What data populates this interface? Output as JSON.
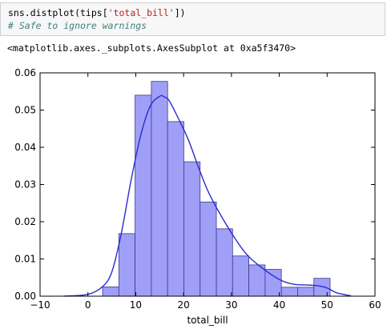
{
  "cell": {
    "code_prefix": "sns.distplot(tips[",
    "code_string": "'total_bill'",
    "code_suffix": "])",
    "comment": "# Safe to ignore warnings"
  },
  "output": {
    "repr": "<matplotlib.axes._subplots.AxesSubplot at 0xa5f3470>"
  },
  "colors": {
    "bar_fill": "#9a9af8",
    "bar_edge": "#3a3a8c",
    "kde_line": "#2b2bd0",
    "code_bg": "#f7f7f7",
    "comment": "#408080",
    "string": "#ba2121"
  },
  "chart_data": {
    "type": "bar",
    "title": "",
    "xlabel": "total_bill",
    "ylabel": "",
    "xlim": [
      -10,
      60
    ],
    "ylim": [
      0.0,
      0.06
    ],
    "xticks": [
      "-10",
      "0",
      "10",
      "20",
      "30",
      "40",
      "50",
      "60"
    ],
    "yticks": [
      "0.00",
      "0.01",
      "0.02",
      "0.03",
      "0.04",
      "0.05",
      "0.06"
    ],
    "grid": false,
    "histogram": {
      "bin_edges": [
        3.07,
        6.47,
        9.86,
        13.26,
        16.66,
        20.05,
        23.45,
        26.85,
        30.24,
        33.64,
        37.04,
        40.43,
        43.83,
        47.23,
        50.62
      ],
      "density": [
        0.0025,
        0.0168,
        0.054,
        0.0577,
        0.0469,
        0.0361,
        0.0253,
        0.0181,
        0.0108,
        0.0084,
        0.0072,
        0.0024,
        0.0024,
        0.0048
      ]
    },
    "kde": {
      "x": [
        -5,
        0,
        3,
        5,
        7,
        9,
        11,
        13,
        15,
        16,
        17,
        19,
        21,
        23,
        25,
        27,
        30,
        33,
        36,
        40,
        43,
        46,
        48,
        50,
        52,
        55
      ],
      "y": [
        0.0,
        0.0005,
        0.0025,
        0.0065,
        0.017,
        0.031,
        0.043,
        0.051,
        0.0537,
        0.0535,
        0.0525,
        0.0475,
        0.042,
        0.035,
        0.0285,
        0.0235,
        0.017,
        0.0115,
        0.008,
        0.0045,
        0.0032,
        0.003,
        0.0028,
        0.0022,
        0.0009,
        0.0001
      ]
    }
  }
}
